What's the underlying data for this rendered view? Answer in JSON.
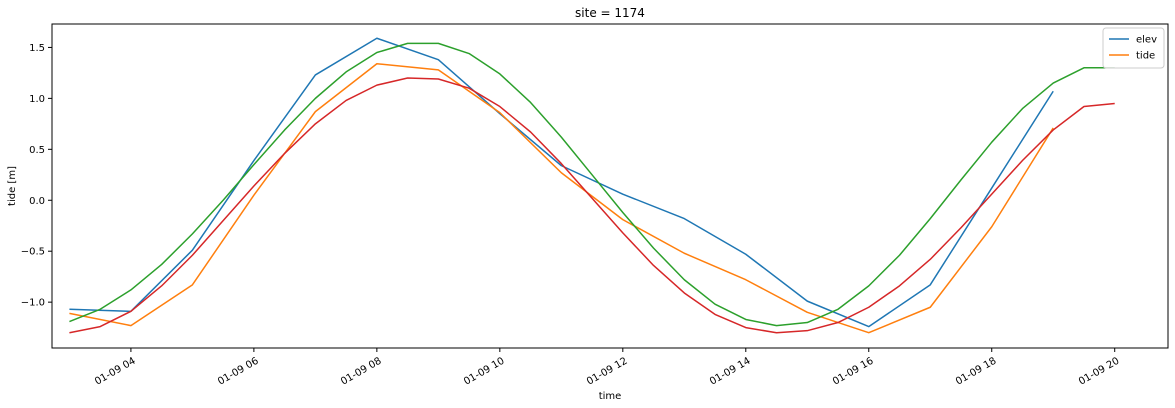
{
  "chart_data": {
    "type": "line",
    "title": "site = 1174",
    "xlabel": "time",
    "ylabel": "tide [m]",
    "xlim": [
      "01-09 02:43",
      "01-09 20:52"
    ],
    "ylim": [
      -1.45,
      1.73
    ],
    "x_ticks": [
      {
        "t": "01-09 04:00",
        "label": "01-09 04"
      },
      {
        "t": "01-09 06:00",
        "label": "01-09 06"
      },
      {
        "t": "01-09 08:00",
        "label": "01-09 08"
      },
      {
        "t": "01-09 10:00",
        "label": "01-09 10"
      },
      {
        "t": "01-09 12:00",
        "label": "01-09 12"
      },
      {
        "t": "01-09 14:00",
        "label": "01-09 14"
      },
      {
        "t": "01-09 16:00",
        "label": "01-09 16"
      },
      {
        "t": "01-09 18:00",
        "label": "01-09 18"
      },
      {
        "t": "01-09 20:00",
        "label": "01-09 20"
      }
    ],
    "y_ticks": [
      {
        "v": -1.0,
        "label": "−1.0"
      },
      {
        "v": -0.5,
        "label": "−0.5"
      },
      {
        "v": 0.0,
        "label": "0.0"
      },
      {
        "v": 0.5,
        "label": "0.5"
      },
      {
        "v": 1.0,
        "label": "1.0"
      },
      {
        "v": 1.5,
        "label": "1.5"
      }
    ],
    "grid": false,
    "legend_position": "top-right",
    "series": [
      {
        "name": "elev",
        "color": "#1f77b4",
        "points": [
          [
            "01-09 03:00",
            -1.07
          ],
          [
            "01-09 04:00",
            -1.09
          ],
          [
            "01-09 05:00",
            -0.49
          ],
          [
            "01-09 06:00",
            0.39
          ],
          [
            "01-09 07:00",
            1.23
          ],
          [
            "01-09 08:00",
            1.59
          ],
          [
            "01-09 09:00",
            1.38
          ],
          [
            "01-09 10:00",
            0.85
          ],
          [
            "01-09 11:00",
            0.34
          ],
          [
            "01-09 12:00",
            0.06
          ],
          [
            "01-09 13:00",
            -0.18
          ],
          [
            "01-09 14:00",
            -0.53
          ],
          [
            "01-09 15:00",
            -0.99
          ],
          [
            "01-09 16:00",
            -1.24
          ],
          [
            "01-09 17:00",
            -0.83
          ],
          [
            "01-09 18:00",
            0.12
          ],
          [
            "01-09 19:00",
            1.07
          ]
        ]
      },
      {
        "name": "tide",
        "color": "#ff7f0e",
        "points": [
          [
            "01-09 03:00",
            -1.11
          ],
          [
            "01-09 04:00",
            -1.23
          ],
          [
            "01-09 05:00",
            -0.83
          ],
          [
            "01-09 06:00",
            0.05
          ],
          [
            "01-09 07:00",
            0.87
          ],
          [
            "01-09 08:00",
            1.34
          ],
          [
            "01-09 09:00",
            1.28
          ],
          [
            "01-09 10:00",
            0.86
          ],
          [
            "01-09 11:00",
            0.27
          ],
          [
            "01-09 12:00",
            -0.19
          ],
          [
            "01-09 13:00",
            -0.52
          ],
          [
            "01-09 14:00",
            -0.78
          ],
          [
            "01-09 15:00",
            -1.1
          ],
          [
            "01-09 16:00",
            -1.3
          ],
          [
            "01-09 17:00",
            -1.05
          ],
          [
            "01-09 18:00",
            -0.26
          ],
          [
            "01-09 19:00",
            0.71
          ]
        ]
      },
      {
        "color": "#2ca02c",
        "points": [
          [
            "01-09 03:00",
            -1.19
          ],
          [
            "01-09 03:30",
            -1.07
          ],
          [
            "01-09 04:00",
            -0.88
          ],
          [
            "01-09 04:30",
            -0.63
          ],
          [
            "01-09 05:00",
            -0.33
          ],
          [
            "01-09 05:30",
            0.0
          ],
          [
            "01-09 06:00",
            0.35
          ],
          [
            "01-09 06:30",
            0.69
          ],
          [
            "01-09 07:00",
            1.0
          ],
          [
            "01-09 07:30",
            1.26
          ],
          [
            "01-09 08:00",
            1.45
          ],
          [
            "01-09 08:30",
            1.54
          ],
          [
            "01-09 09:00",
            1.54
          ],
          [
            "01-09 09:30",
            1.44
          ],
          [
            "01-09 10:00",
            1.24
          ],
          [
            "01-09 10:30",
            0.96
          ],
          [
            "01-09 11:00",
            0.62
          ],
          [
            "01-09 11:30",
            0.25
          ],
          [
            "01-09 12:00",
            -0.12
          ],
          [
            "01-09 12:30",
            -0.47
          ],
          [
            "01-09 13:00",
            -0.78
          ],
          [
            "01-09 13:30",
            -1.02
          ],
          [
            "01-09 14:00",
            -1.17
          ],
          [
            "01-09 14:30",
            -1.23
          ],
          [
            "01-09 15:00",
            -1.2
          ],
          [
            "01-09 15:30",
            -1.07
          ],
          [
            "01-09 16:00",
            -0.84
          ],
          [
            "01-09 16:30",
            -0.54
          ],
          [
            "01-09 17:00",
            -0.18
          ],
          [
            "01-09 17:30",
            0.2
          ],
          [
            "01-09 18:00",
            0.57
          ],
          [
            "01-09 18:30",
            0.9
          ],
          [
            "01-09 19:00",
            1.15
          ],
          [
            "01-09 19:30",
            1.3
          ],
          [
            "01-09 20:00",
            1.3
          ]
        ]
      },
      {
        "color": "#d62728",
        "points": [
          [
            "01-09 03:00",
            -1.3
          ],
          [
            "01-09 03:30",
            -1.24
          ],
          [
            "01-09 04:00",
            -1.09
          ],
          [
            "01-09 04:30",
            -0.84
          ],
          [
            "01-09 05:00",
            -0.54
          ],
          [
            "01-09 05:30",
            -0.2
          ],
          [
            "01-09 06:00",
            0.14
          ],
          [
            "01-09 06:30",
            0.46
          ],
          [
            "01-09 07:00",
            0.75
          ],
          [
            "01-09 07:30",
            0.98
          ],
          [
            "01-09 08:00",
            1.13
          ],
          [
            "01-09 08:30",
            1.2
          ],
          [
            "01-09 09:00",
            1.19
          ],
          [
            "01-09 09:30",
            1.1
          ],
          [
            "01-09 10:00",
            0.92
          ],
          [
            "01-09 10:30",
            0.67
          ],
          [
            "01-09 11:00",
            0.36
          ],
          [
            "01-09 11:30",
            0.02
          ],
          [
            "01-09 12:00",
            -0.32
          ],
          [
            "01-09 12:30",
            -0.64
          ],
          [
            "01-09 13:00",
            -0.91
          ],
          [
            "01-09 13:30",
            -1.12
          ],
          [
            "01-09 14:00",
            -1.25
          ],
          [
            "01-09 14:30",
            -1.3
          ],
          [
            "01-09 15:00",
            -1.28
          ],
          [
            "01-09 15:30",
            -1.2
          ],
          [
            "01-09 16:00",
            -1.05
          ],
          [
            "01-09 16:30",
            -0.84
          ],
          [
            "01-09 17:00",
            -0.58
          ],
          [
            "01-09 17:30",
            -0.27
          ],
          [
            "01-09 18:00",
            0.06
          ],
          [
            "01-09 18:30",
            0.39
          ],
          [
            "01-09 19:00",
            0.69
          ],
          [
            "01-09 19:30",
            0.92
          ],
          [
            "01-09 20:00",
            0.95
          ]
        ]
      }
    ]
  }
}
